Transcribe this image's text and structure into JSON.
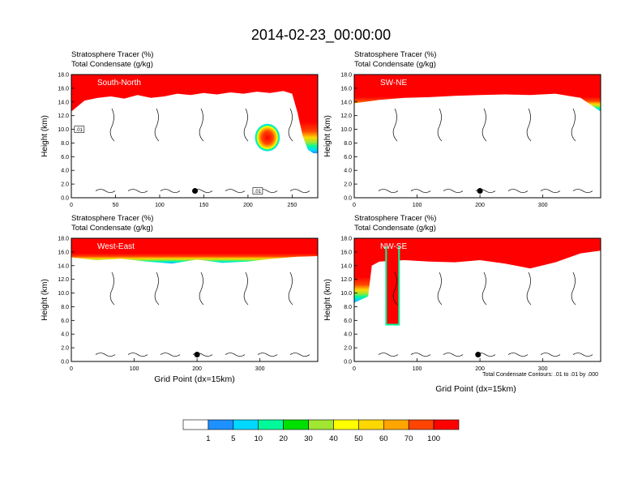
{
  "title": "2014-02-23_00:00:00",
  "chart_data": [
    {
      "type": "heatmap",
      "panel_label": "South-North",
      "header_lines": [
        "Stratosphere Tracer   (%)",
        "Total Condensate   (g/kg)"
      ],
      "ylabel": "Height (km)",
      "xlabel": "",
      "xlim": [
        0,
        279
      ],
      "ylim": [
        0,
        18
      ],
      "xticks": [
        "0",
        "50",
        "100",
        "150",
        "200",
        "250"
      ],
      "yticks": [
        "0.0",
        "2.0",
        "4.0",
        "6.0",
        "8.0",
        "10.0",
        "12.0",
        "14.0",
        "16.0",
        "18.0"
      ],
      "tropopause_km": [
        [
          0,
          12.6
        ],
        [
          15,
          14.2
        ],
        [
          30,
          14.6
        ],
        [
          45,
          14.8
        ],
        [
          60,
          14.5
        ],
        [
          75,
          15.0
        ],
        [
          90,
          14.6
        ],
        [
          105,
          14.8
        ],
        [
          120,
          15.2
        ],
        [
          135,
          15.0
        ],
        [
          150,
          15.3
        ],
        [
          165,
          15.1
        ],
        [
          180,
          15.4
        ],
        [
          195,
          15.2
        ],
        [
          210,
          15.5
        ],
        [
          225,
          15.3
        ],
        [
          240,
          15.6
        ],
        [
          250,
          15.2
        ],
        [
          256,
          12.5
        ],
        [
          262,
          9.0
        ],
        [
          268,
          7.0
        ],
        [
          274,
          6.5
        ],
        [
          279,
          6.5
        ]
      ],
      "blob": {
        "x": 222,
        "height_km": 8.8,
        "rx": 14,
        "ry_km": 2.0
      },
      "marker": {
        "x": 140,
        "height_km": 1.0
      },
      "contour_labels": [
        {
          "text": ".01",
          "x": 9,
          "height_km": 10.0
        },
        {
          "text": ".01",
          "x": 211,
          "height_km": 1.0
        }
      ]
    },
    {
      "type": "heatmap",
      "panel_label": "SW-NE",
      "header_lines": [
        "Stratosphere Tracer   (%)",
        "Total Condensate   (g/kg)"
      ],
      "ylabel": "Height (km)",
      "xlabel": "",
      "xlim": [
        0,
        392
      ],
      "ylim": [
        0,
        18
      ],
      "xticks": [
        "0",
        "100",
        "200",
        "300"
      ],
      "yticks": [
        "0.0",
        "2.0",
        "4.0",
        "6.0",
        "8.0",
        "10.0",
        "12.0",
        "14.0",
        "16.0",
        "18.0"
      ],
      "tropopause_km": [
        [
          0,
          13.8
        ],
        [
          40,
          14.3
        ],
        [
          80,
          14.6
        ],
        [
          120,
          14.7
        ],
        [
          160,
          14.9
        ],
        [
          200,
          15.0
        ],
        [
          240,
          15.1
        ],
        [
          280,
          15.0
        ],
        [
          320,
          15.2
        ],
        [
          360,
          14.6
        ],
        [
          392,
          12.6
        ]
      ],
      "marker": {
        "x": 200,
        "height_km": 1.0
      },
      "contour_labels": []
    },
    {
      "type": "heatmap",
      "panel_label": "West-East",
      "header_lines": [
        "Stratosphere Tracer   (%)",
        "Total Condensate   (g/kg)"
      ],
      "ylabel": "Height (km)",
      "xlabel": "Grid Point (dx=15km)",
      "xlim": [
        0,
        392
      ],
      "ylim": [
        0,
        18
      ],
      "xticks": [
        "0",
        "100",
        "200",
        "300"
      ],
      "yticks": [
        "0.0",
        "2.0",
        "4.0",
        "6.0",
        "8.0",
        "10.0",
        "12.0",
        "14.0",
        "16.0",
        "18.0"
      ],
      "tropopause_km": [
        [
          0,
          15.2
        ],
        [
          40,
          14.8
        ],
        [
          80,
          15.0
        ],
        [
          120,
          14.6
        ],
        [
          160,
          14.3
        ],
        [
          200,
          14.9
        ],
        [
          240,
          14.4
        ],
        [
          280,
          14.6
        ],
        [
          320,
          15.0
        ],
        [
          360,
          15.3
        ],
        [
          392,
          15.4
        ]
      ],
      "marker": {
        "x": 200,
        "height_km": 1.0
      },
      "contour_labels": []
    },
    {
      "type": "heatmap",
      "panel_label": "NW-SE",
      "header_lines": [
        "Stratosphere Tracer   (%)",
        "Total Condensate   (g/kg)"
      ],
      "ylabel": "Height (km)",
      "xlabel": "Grid Point (dx=15km)",
      "xlim": [
        0,
        392
      ],
      "ylim": [
        0,
        18
      ],
      "xticks": [
        "0",
        "100",
        "200",
        "300"
      ],
      "yticks": [
        "0.0",
        "2.0",
        "4.0",
        "6.0",
        "8.0",
        "10.0",
        "12.0",
        "14.0",
        "16.0",
        "18.0"
      ],
      "tropopause_km": [
        [
          0,
          8.6
        ],
        [
          10,
          9.0
        ],
        [
          22,
          9.5
        ],
        [
          28,
          14.0
        ],
        [
          40,
          14.6
        ],
        [
          80,
          14.8
        ],
        [
          120,
          14.6
        ],
        [
          160,
          14.5
        ],
        [
          200,
          14.8
        ],
        [
          240,
          14.3
        ],
        [
          280,
          13.6
        ],
        [
          320,
          14.5
        ],
        [
          360,
          15.8
        ],
        [
          392,
          16.2
        ]
      ],
      "intrusion": {
        "x_from": 52,
        "x_to": 70,
        "bottom_km": 5.5
      },
      "marker": {
        "x": 197,
        "height_km": 1.0
      },
      "contour_labels": [],
      "note": "Total Condensate Contours: .01 to .01 by .000"
    }
  ],
  "colorbar": {
    "colors": [
      "#ffffff",
      "#1e90ff",
      "#00d8ff",
      "#00fa9a",
      "#00e000",
      "#a0e632",
      "#ffff00",
      "#ffd700",
      "#ffa500",
      "#ff4500",
      "#ff0000"
    ],
    "labels": [
      "1",
      "5",
      "10",
      "20",
      "30",
      "40",
      "50",
      "60",
      "70",
      "100"
    ]
  }
}
